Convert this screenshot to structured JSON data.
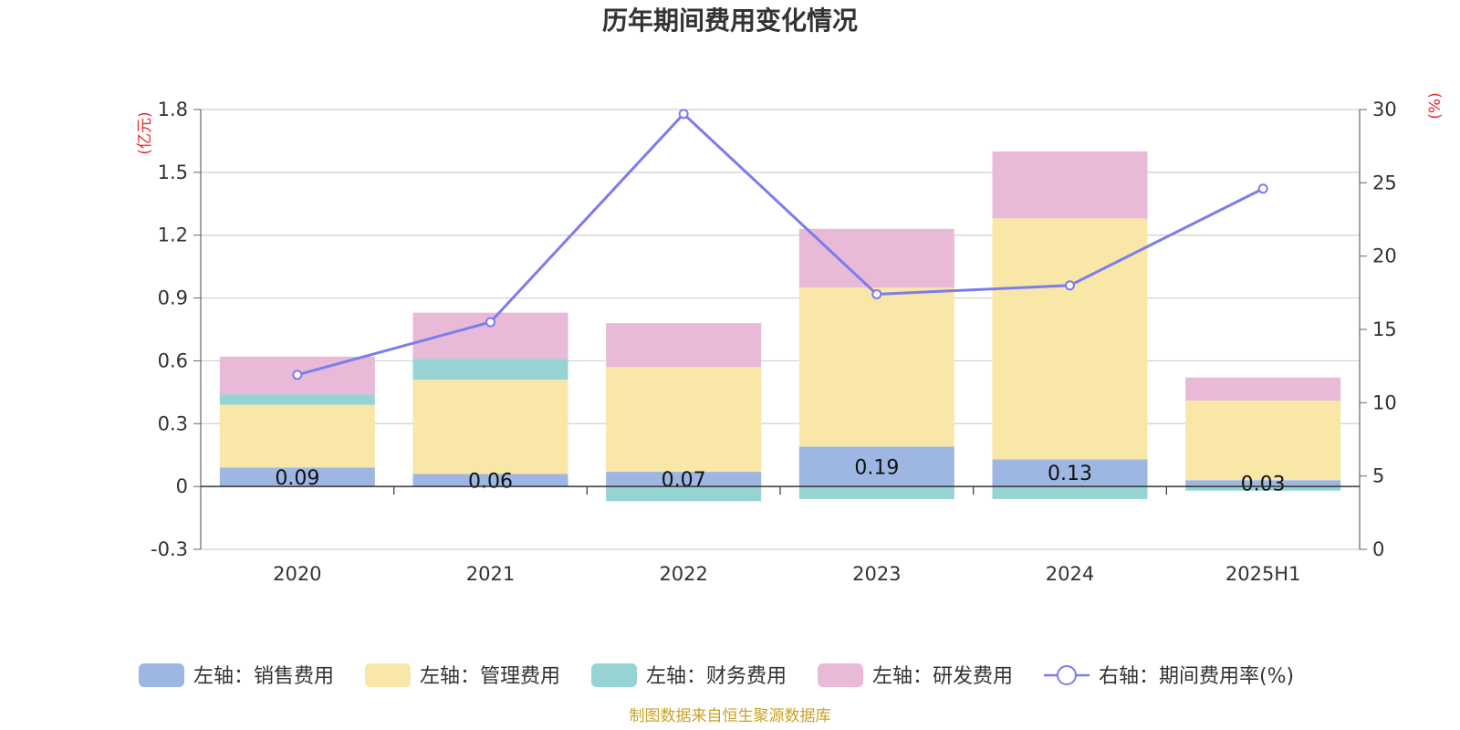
{
  "chart_data": {
    "type": "bar",
    "stacked": true,
    "title": "历年期间费用变化情况",
    "categories": [
      "2020",
      "2021",
      "2022",
      "2023",
      "2024",
      "2025H1"
    ],
    "y_left": {
      "unit": "(亿元)",
      "ylim": [
        -0.3,
        1.8
      ],
      "ticks": [
        "-0.3",
        "0",
        "0.3",
        "0.6",
        "0.9",
        "1.2",
        "1.5",
        "1.8"
      ]
    },
    "y_right": {
      "unit": "(%)",
      "ylim": [
        0,
        30
      ],
      "ticks": [
        "0",
        "5",
        "10",
        "15",
        "20",
        "25",
        "30"
      ]
    },
    "series": [
      {
        "name": "左轴：销售费用",
        "axis": "left",
        "color": "#9db6e2",
        "values": [
          0.09,
          0.06,
          0.07,
          0.19,
          0.13,
          0.03
        ],
        "labels": [
          "0.09",
          "0.06",
          "0.07",
          "0.19",
          "0.13",
          "0.03"
        ]
      },
      {
        "name": "左轴：管理费用",
        "axis": "left",
        "color": "#f8e7a6",
        "values": [
          0.3,
          0.45,
          0.5,
          0.76,
          1.15,
          0.38
        ]
      },
      {
        "name": "左轴：财务费用",
        "axis": "left",
        "color": "#96d4d3",
        "values": [
          0.05,
          0.1,
          -0.07,
          -0.06,
          -0.06,
          -0.02
        ]
      },
      {
        "name": "左轴：研发费用",
        "axis": "left",
        "color": "#e8bad8",
        "values": [
          0.18,
          0.22,
          0.21,
          0.28,
          0.32,
          0.11
        ]
      },
      {
        "name": "右轴：期间费用率(%)",
        "axis": "right",
        "type": "line",
        "color": "#7b7cee",
        "values": [
          11.9,
          15.5,
          29.7,
          17.4,
          18.0,
          24.6
        ]
      }
    ],
    "grid": true,
    "legend_position": "bottom"
  },
  "source_note": "制图数据来自恒生聚源数据库"
}
